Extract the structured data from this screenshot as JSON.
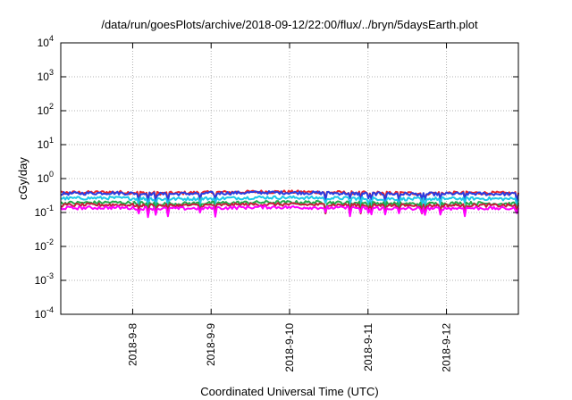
{
  "chart_data": {
    "type": "line",
    "title": "/data/run/goesPlots/archive/2018-09-12/22:00/flux/../bryn/5daysEarth.plot",
    "xlabel": "Coordinated Universal Time (UTC)",
    "ylabel": "cGy/day",
    "yscale": "log",
    "ylim": [
      0.0001,
      10000
    ],
    "y_ticks": [
      {
        "value": 0.0001,
        "base": "10",
        "exp": "-4"
      },
      {
        "value": 0.001,
        "base": "10",
        "exp": "-3"
      },
      {
        "value": 0.01,
        "base": "10",
        "exp": "-2"
      },
      {
        "value": 0.1,
        "base": "10",
        "exp": "-1"
      },
      {
        "value": 1,
        "base": "10",
        "exp": "0"
      },
      {
        "value": 10,
        "base": "10",
        "exp": "1"
      },
      {
        "value": 100,
        "base": "10",
        "exp": "2"
      },
      {
        "value": 1000,
        "base": "10",
        "exp": "3"
      },
      {
        "value": 10000,
        "base": "10",
        "exp": "4"
      }
    ],
    "xlim": [
      "2018-09-07 02:00",
      "2018-09-12 22:00"
    ],
    "x_ticks": [
      "2018-9-8",
      "2018-9-9",
      "2018-9-10",
      "2018-9-11",
      "2018-9-12"
    ],
    "grid": true,
    "series": [
      {
        "color": "#e8242c",
        "values": [
          0.38,
          0.4,
          0.37,
          0.39,
          0.41,
          0.4,
          0.38,
          0.37,
          0.38,
          0.37
        ]
      },
      {
        "color": "#2a3ce0",
        "values": [
          0.36,
          0.38,
          0.35,
          0.37,
          0.39,
          0.38,
          0.36,
          0.35,
          0.36,
          0.35
        ]
      },
      {
        "color": "#1ec8e8",
        "values": [
          0.26,
          0.27,
          0.25,
          0.26,
          0.28,
          0.27,
          0.26,
          0.25,
          0.26,
          0.25
        ]
      },
      {
        "color": "#22a84a",
        "values": [
          0.19,
          0.2,
          0.18,
          0.19,
          0.2,
          0.2,
          0.19,
          0.18,
          0.19,
          0.18
        ]
      },
      {
        "color": "#c41e3a",
        "values": [
          0.165,
          0.17,
          0.16,
          0.165,
          0.175,
          0.17,
          0.165,
          0.16,
          0.165,
          0.16
        ]
      },
      {
        "color": "#ff00ff",
        "values": [
          0.135,
          0.14,
          0.13,
          0.135,
          0.145,
          0.14,
          0.135,
          0.13,
          0.135,
          0.13
        ]
      }
    ]
  }
}
